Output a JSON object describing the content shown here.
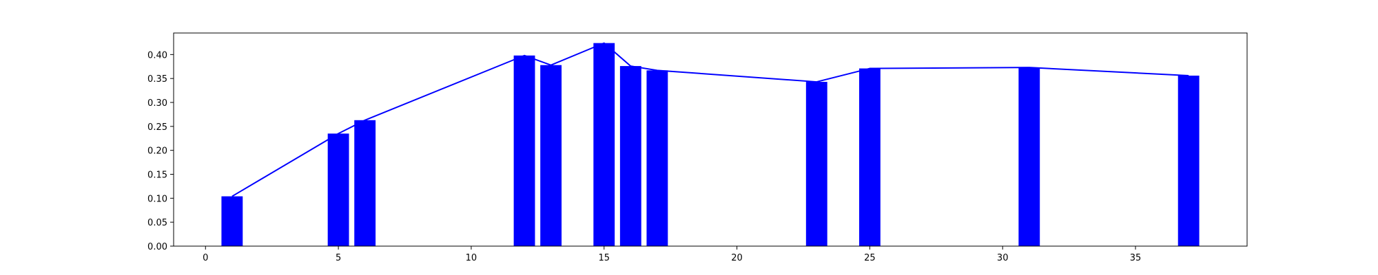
{
  "chart_data": {
    "type": "bar",
    "title": "",
    "xlabel": "",
    "ylabel": "",
    "xlim": [
      -1.2,
      39.2
    ],
    "ylim": [
      0.0,
      0.445
    ],
    "xticks": [
      0,
      5,
      10,
      15,
      20,
      25,
      30,
      35
    ],
    "yticks": [
      0.0,
      0.05,
      0.1,
      0.15,
      0.2,
      0.25,
      0.3,
      0.35,
      0.4
    ],
    "xtick_labels": [
      "0",
      "5",
      "10",
      "15",
      "20",
      "25",
      "30",
      "35"
    ],
    "ytick_labels": [
      "0.00",
      "0.05",
      "0.10",
      "0.15",
      "0.20",
      "0.25",
      "0.30",
      "0.35",
      "0.40"
    ],
    "grid": false,
    "legend": "none",
    "color": "#0000ff",
    "bar_width": 0.8,
    "series": [
      {
        "type": "bar",
        "x": [
          1,
          5,
          6,
          12,
          13,
          15,
          16,
          17,
          23,
          25,
          31,
          37
        ],
        "values": [
          0.104,
          0.235,
          0.263,
          0.398,
          0.378,
          0.424,
          0.376,
          0.367,
          0.343,
          0.371,
          0.373,
          0.356
        ]
      },
      {
        "type": "line",
        "x": [
          1,
          5,
          6,
          12,
          13,
          15,
          16,
          17,
          23,
          25,
          31,
          37
        ],
        "values": [
          0.104,
          0.235,
          0.263,
          0.398,
          0.378,
          0.424,
          0.376,
          0.367,
          0.343,
          0.371,
          0.373,
          0.356
        ]
      }
    ]
  }
}
